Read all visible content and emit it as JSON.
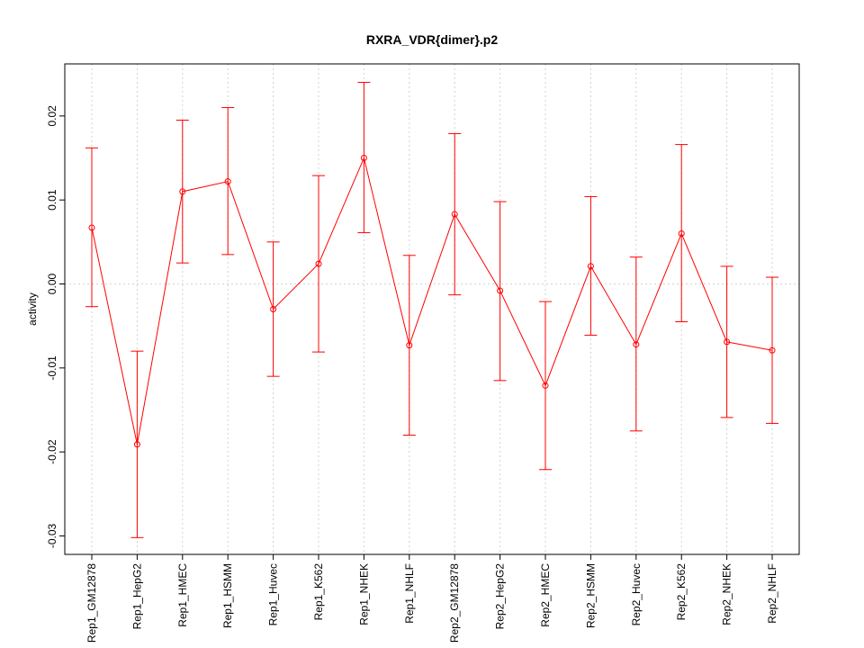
{
  "chart_data": {
    "type": "line",
    "title": "RXRA_VDR{dimer}.p2",
    "xlabel": "",
    "ylabel": "activity",
    "ylim": [
      -0.0322,
      0.0262
    ],
    "yticks": [
      -0.03,
      -0.02,
      -0.01,
      0.0,
      0.01,
      0.02
    ],
    "ytick_labels": [
      "-0.03",
      "-0.02",
      "-0.01",
      "0.00",
      "0.01",
      "0.02"
    ],
    "grid": true,
    "categories": [
      "Rep1_GM12878",
      "Rep1_HepG2",
      "Rep1_HMEC",
      "Rep1_HSMM",
      "Rep1_Huvec",
      "Rep1_K562",
      "Rep1_NHEK",
      "Rep1_NHLF",
      "Rep2_GM12878",
      "Rep2_HepG2",
      "Rep2_HMEC",
      "Rep2_HSMM",
      "Rep2_Huvec",
      "Rep2_K562",
      "Rep2_NHEK",
      "Rep2_NHLF"
    ],
    "series": [
      {
        "name": "activity",
        "color": "#ff0000",
        "values": [
          0.0067,
          -0.0191,
          0.011,
          0.0122,
          -0.003,
          0.0024,
          0.015,
          -0.0073,
          0.0083,
          -0.0008,
          -0.0121,
          0.0021,
          -0.0072,
          0.006,
          -0.0069,
          -0.0079
        ],
        "upper": [
          0.0162,
          -0.008,
          0.0195,
          0.021,
          0.005,
          0.0129,
          0.024,
          0.0034,
          0.0179,
          0.0098,
          -0.0021,
          0.0104,
          0.0032,
          0.0166,
          0.0021,
          0.0008
        ],
        "lower": [
          -0.0027,
          -0.0302,
          0.0025,
          0.0035,
          -0.011,
          -0.0081,
          0.0061,
          -0.018,
          -0.0013,
          -0.0115,
          -0.0221,
          -0.0061,
          -0.0175,
          -0.0045,
          -0.0159,
          -0.0166
        ]
      }
    ]
  }
}
